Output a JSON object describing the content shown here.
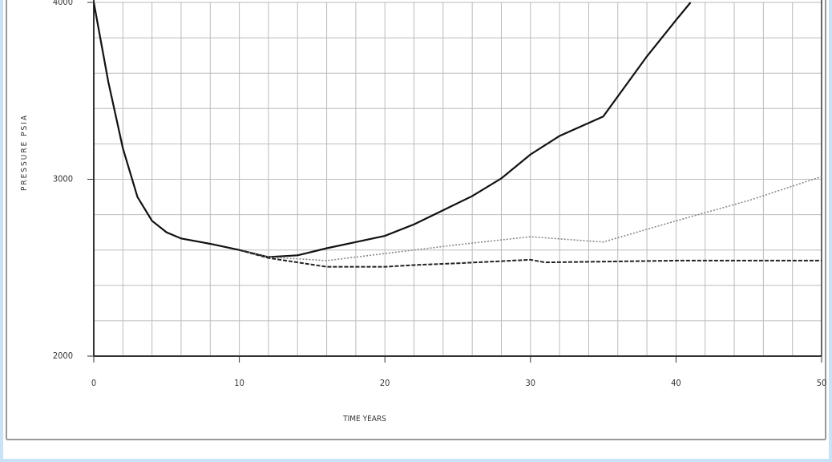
{
  "chart_data": {
    "type": "line",
    "x_label": "TIME  YEARS",
    "y_label": "PRESSURE   PSIA",
    "xlim": [
      0,
      50
    ],
    "xticks": [
      0,
      10,
      20,
      30,
      40,
      50
    ],
    "xminor_ticks": [
      2,
      4,
      6,
      8,
      12,
      14,
      16,
      18,
      22,
      24,
      26,
      28,
      32,
      34,
      36,
      38,
      42,
      44,
      46,
      48
    ],
    "ylim": [
      2000,
      4000
    ],
    "yticks": [
      2000,
      3000,
      4000
    ],
    "yminor_ticks": [
      2200,
      2400,
      2600,
      2800,
      3200,
      3400,
      3600,
      3800
    ],
    "grid": true,
    "series": [
      {
        "color": "#111111",
        "style": "solid",
        "width": 2.2,
        "x": [
          0,
          1,
          2,
          3,
          4,
          5,
          6,
          8,
          10,
          12,
          14,
          16,
          18,
          20,
          22,
          24,
          26,
          28,
          30,
          32,
          35,
          38,
          40,
          41
        ],
        "values": [
          4000,
          3550,
          3175,
          2900,
          2765,
          2700,
          2665,
          2635,
          2600,
          2560,
          2570,
          2610,
          2645,
          2680,
          2745,
          2825,
          2905,
          3005,
          3140,
          3245,
          3355,
          3695,
          3900,
          4000
        ]
      },
      {
        "color": "#888888",
        "style": "dotted",
        "width": 1.6,
        "x": [
          10,
          12,
          16,
          20,
          25,
          30,
          35,
          40,
          45,
          50
        ],
        "values": [
          2600,
          2560,
          2540,
          2580,
          2630,
          2675,
          2645,
          2765,
          2880,
          3015
        ]
      },
      {
        "color": "#222222",
        "style": "dashed",
        "width": 2,
        "x": [
          10,
          12,
          14,
          16,
          20,
          22,
          25,
          30,
          31,
          40,
          50
        ],
        "values": [
          2600,
          2555,
          2530,
          2505,
          2505,
          2515,
          2525,
          2545,
          2530,
          2540,
          2540
        ]
      }
    ]
  }
}
